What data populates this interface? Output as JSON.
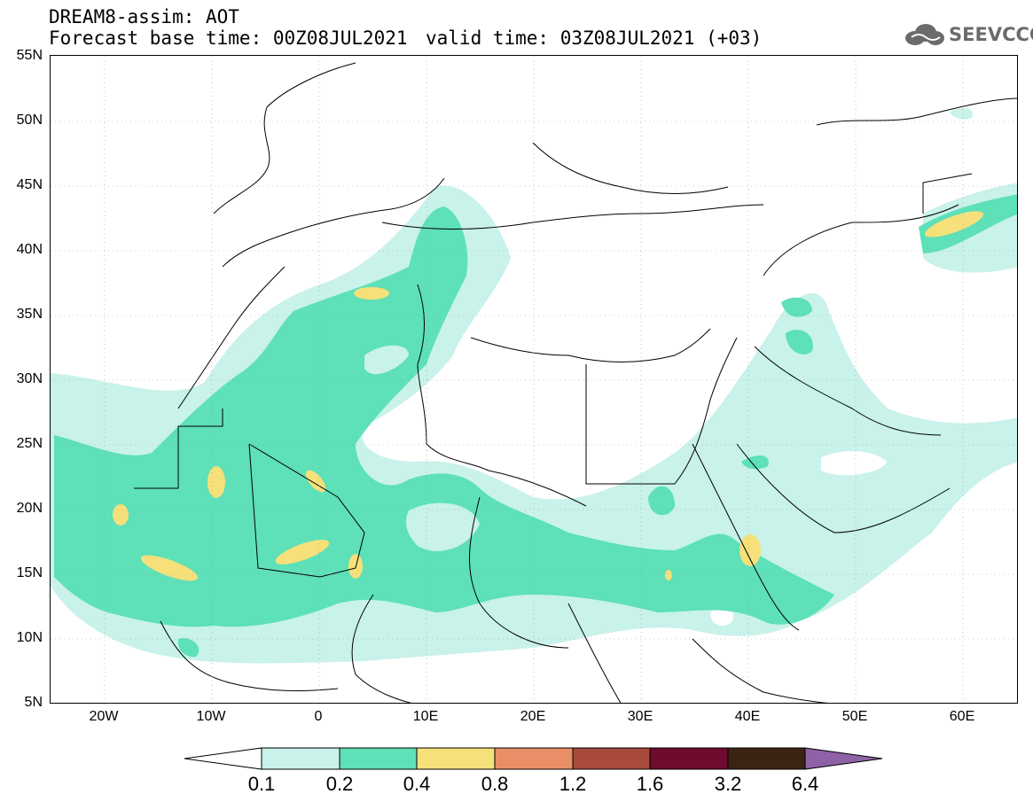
{
  "header": {
    "line1": "DREAM8-assim: AOT",
    "line2": "Forecast base time: 00Z08JUL2021",
    "valid": "valid time: 03Z08JUL2021 (+03)"
  },
  "logo": {
    "text": "SEEVCCC",
    "icon": "cloud-icon"
  },
  "axes": {
    "y_labels": [
      "55N",
      "50N",
      "45N",
      "40N",
      "35N",
      "30N",
      "25N",
      "20N",
      "15N",
      "10N",
      "5N"
    ],
    "x_labels": [
      "20W",
      "10W",
      "0",
      "10E",
      "20E",
      "30E",
      "40E",
      "50E",
      "60E"
    ]
  },
  "colorbar": {
    "labels": [
      "0.1",
      "0.2",
      "0.4",
      "0.8",
      "1.2",
      "1.6",
      "3.2",
      "6.4"
    ],
    "colors": [
      "#ffffff",
      "#c8f2ea",
      "#5ee0b8",
      "#f5e07a",
      "#e98f68",
      "#a84a3c",
      "#6e0b2f",
      "#3b2414",
      "#8e62a6"
    ]
  },
  "map": {
    "colors": {
      "low": "#c8f2ea",
      "mid": "#5ee0b8",
      "high": "#f5e07a"
    }
  }
}
